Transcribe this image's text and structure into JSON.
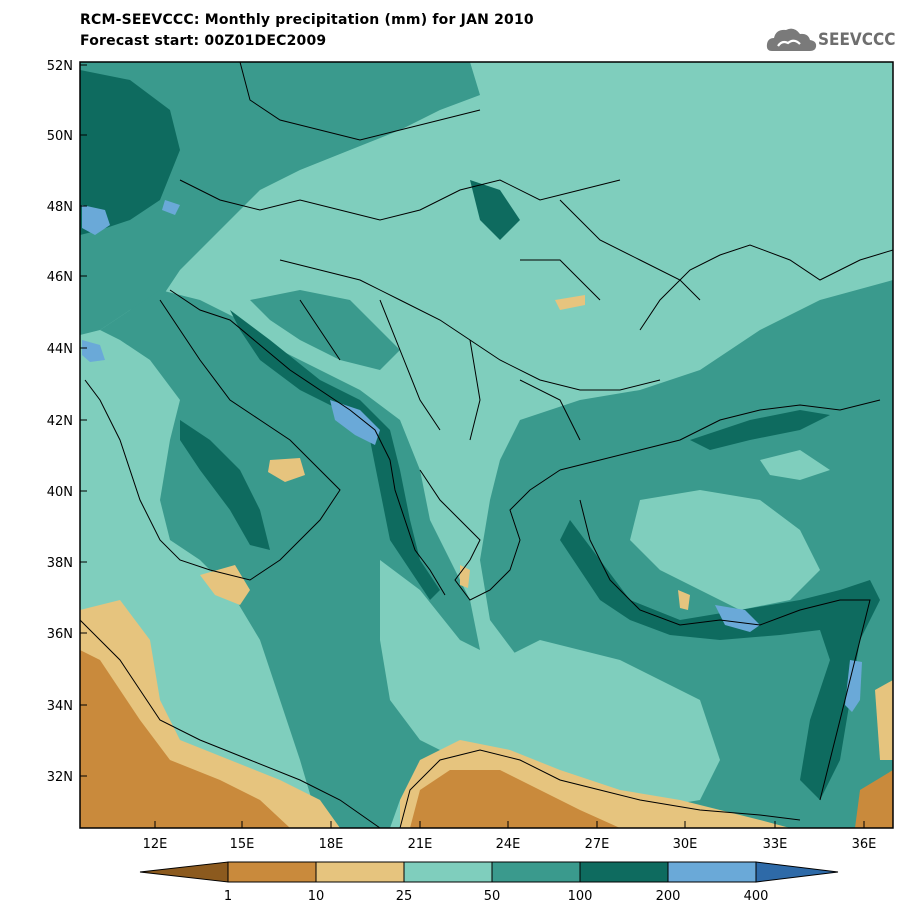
{
  "header": {
    "title": "RCM-SEEVCCC: Monthly precipitation (mm) for JAN 2010",
    "subtitle": "Forecast start: 00Z01DEC2009",
    "logo_text": "SEEVCCC"
  },
  "map": {
    "lat_labels": [
      "52N",
      "50N",
      "48N",
      "46N",
      "44N",
      "42N",
      "40N",
      "38N",
      "36N",
      "34N",
      "32N"
    ],
    "lon_labels": [
      "12E",
      "15E",
      "18E",
      "21E",
      "24E",
      "27E",
      "30E",
      "33E",
      "36E"
    ]
  },
  "colorbar": {
    "levels": [
      "1",
      "10",
      "25",
      "50",
      "100",
      "200",
      "400"
    ],
    "colors": [
      "#8c5a1e",
      "#c98a3c",
      "#e6c47e",
      "#7fcebd",
      "#3a9a8d",
      "#0e6b5f",
      "#6aa9d8",
      "#2e6aa8"
    ]
  }
}
